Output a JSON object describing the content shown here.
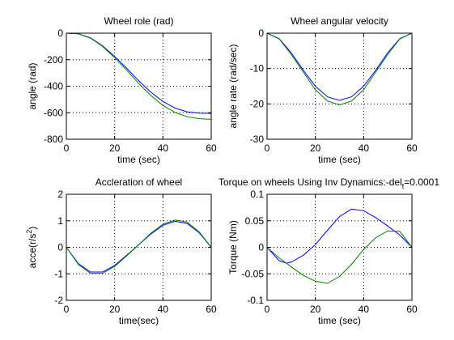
{
  "chart_data": [
    {
      "type": "line",
      "title": "Wheel role (rad)",
      "xlabel": "time (sec)",
      "ylabel": "angle (rad)",
      "xlim": [
        0,
        60
      ],
      "ylim": [
        -800,
        0
      ],
      "xticks": [
        0,
        20,
        40,
        60
      ],
      "yticks": [
        -800,
        -600,
        -400,
        -200,
        0
      ],
      "grid": true,
      "x": [
        0,
        5,
        10,
        15,
        20,
        25,
        30,
        35,
        40,
        45,
        50,
        55,
        60
      ],
      "series": [
        {
          "color": "#0000ff",
          "values": [
            0,
            -5,
            -35,
            -95,
            -175,
            -265,
            -360,
            -445,
            -515,
            -565,
            -593,
            -603,
            -605
          ]
        },
        {
          "color": "#008000",
          "values": [
            0,
            -5,
            -37,
            -100,
            -185,
            -280,
            -380,
            -470,
            -545,
            -598,
            -630,
            -645,
            -650
          ]
        }
      ]
    },
    {
      "type": "line",
      "title": "Wheel angular velocity",
      "xlabel": "time (sec)",
      "ylabel": "angle rate (rad/sec)",
      "xlim": [
        0,
        60
      ],
      "ylim": [
        -30,
        0
      ],
      "xticks": [
        0,
        20,
        40,
        60
      ],
      "yticks": [
        -30,
        -20,
        -10,
        0
      ],
      "grid": true,
      "x": [
        0,
        5,
        10,
        15,
        20,
        25,
        30,
        35,
        40,
        45,
        50,
        55,
        60
      ],
      "series": [
        {
          "color": "#0000ff",
          "values": [
            0,
            -1.5,
            -5.5,
            -10.5,
            -15,
            -18,
            -19,
            -18,
            -15,
            -10.5,
            -5.5,
            -1.5,
            0
          ]
        },
        {
          "color": "#008000",
          "values": [
            0,
            -1.6,
            -6,
            -11,
            -16,
            -19.2,
            -20.3,
            -19.2,
            -16,
            -11,
            -6,
            -1.6,
            0
          ]
        }
      ]
    },
    {
      "type": "line",
      "title": "Accleration of wheel",
      "xlabel": "time(sec)",
      "ylabel_main": "acce(r/s",
      "ylabel_sup": "2",
      "ylabel_end": ")",
      "xlim": [
        0,
        60
      ],
      "ylim": [
        -2,
        2
      ],
      "xticks": [
        0,
        20,
        40,
        60
      ],
      "yticks": [
        -2,
        -1,
        0,
        1,
        2
      ],
      "grid": true,
      "x": [
        0,
        5,
        10,
        15,
        20,
        25,
        30,
        35,
        40,
        45,
        50,
        55,
        60
      ],
      "series": [
        {
          "color": "#0000ff",
          "values": [
            0,
            -0.62,
            -0.93,
            -0.93,
            -0.68,
            -0.3,
            0.1,
            0.5,
            0.83,
            0.98,
            0.9,
            0.55,
            0
          ]
        },
        {
          "color": "#008000",
          "values": [
            0,
            -0.65,
            -0.98,
            -0.98,
            -0.72,
            -0.32,
            0.1,
            0.53,
            0.87,
            1.03,
            0.95,
            0.58,
            0
          ]
        }
      ]
    },
    {
      "type": "line",
      "title_main": "Torque on wheels Using Inv Dynamics:-del",
      "title_sub": "t",
      "title_end": "=0.0001",
      "xlabel": "time (sec)",
      "ylabel": "Torque (Nm)",
      "xlim": [
        0,
        60
      ],
      "ylim": [
        -0.1,
        0.1
      ],
      "xticks": [
        0,
        20,
        40,
        60
      ],
      "yticks": [
        -0.1,
        -0.05,
        0,
        0.05,
        0.1
      ],
      "grid": true,
      "x": [
        0,
        5,
        8,
        10,
        15,
        20,
        25,
        30,
        35,
        40,
        45,
        50,
        55,
        60
      ],
      "series": [
        {
          "color": "#0000ff",
          "values": [
            0,
            -0.025,
            -0.03,
            -0.028,
            -0.015,
            0.005,
            0.032,
            0.058,
            0.072,
            0.069,
            0.056,
            0.04,
            0.023,
            0
          ]
        },
        {
          "color": "#008000",
          "values": [
            0,
            -0.02,
            -0.03,
            -0.037,
            -0.053,
            -0.064,
            -0.068,
            -0.055,
            -0.032,
            -0.004,
            0.018,
            0.031,
            0.03,
            0
          ]
        }
      ]
    }
  ]
}
